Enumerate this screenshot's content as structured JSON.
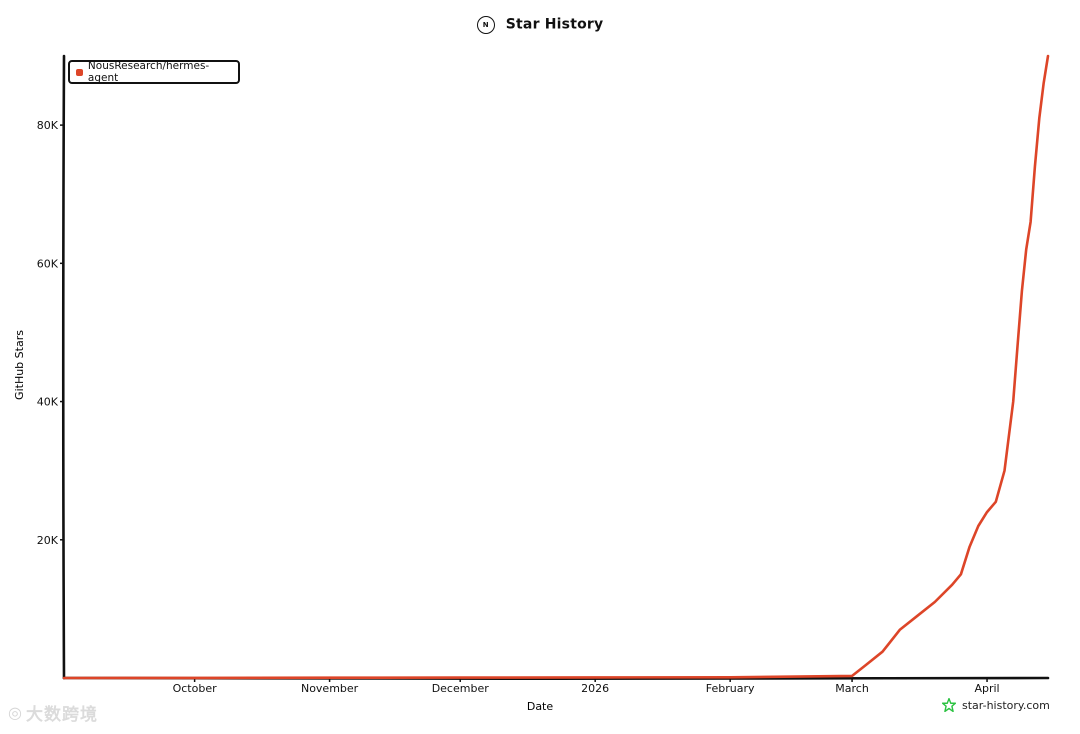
{
  "header": {
    "title": "Star History",
    "icon": "nous-logo-icon"
  },
  "legend": {
    "color": "#dd4528"
  },
  "watermark": {
    "label": "star-history.com",
    "icon": "star-icon",
    "icon_color": "#2bc241"
  },
  "overlay_watermark": {
    "label": "大数跨境",
    "icon": "logo-icon"
  },
  "chart_data": {
    "type": "line",
    "title": "Star History",
    "xlabel": "Date",
    "ylabel": "GitHub Stars",
    "x_tick_labels": [
      "October",
      "November",
      "December",
      "2026",
      "February",
      "March",
      "April"
    ],
    "x_tick_dates": [
      "2025-10-01",
      "2025-11-01",
      "2025-12-01",
      "2026-01-01",
      "2026-02-01",
      "2026-03-01",
      "2026-04-01"
    ],
    "y_tick_labels": [
      "20K",
      "40K",
      "60K",
      "80K"
    ],
    "y_ticks": [
      20000,
      40000,
      60000,
      80000
    ],
    "xlim": [
      "2025-09-01",
      "2026-04-15"
    ],
    "ylim": [
      0,
      90000
    ],
    "grid": false,
    "legend_position": "top-left",
    "series": [
      {
        "name": "NousResearch/hermes-agent",
        "color": "#dd4528",
        "points": [
          [
            "2025-09-01",
            0
          ],
          [
            "2025-10-01",
            20
          ],
          [
            "2025-11-01",
            40
          ],
          [
            "2025-12-01",
            60
          ],
          [
            "2026-01-01",
            80
          ],
          [
            "2026-02-01",
            100
          ],
          [
            "2026-03-01",
            300
          ],
          [
            "2026-03-04",
            1800
          ],
          [
            "2026-03-08",
            3800
          ],
          [
            "2026-03-12",
            7000
          ],
          [
            "2026-03-16",
            9000
          ],
          [
            "2026-03-20",
            11000
          ],
          [
            "2026-03-24",
            13500
          ],
          [
            "2026-03-26",
            15000
          ],
          [
            "2026-03-28",
            19000
          ],
          [
            "2026-03-30",
            22000
          ],
          [
            "2026-04-01",
            24000
          ],
          [
            "2026-04-03",
            25500
          ],
          [
            "2026-04-05",
            30000
          ],
          [
            "2026-04-07",
            40000
          ],
          [
            "2026-04-08",
            48000
          ],
          [
            "2026-04-09",
            56000
          ],
          [
            "2026-04-10",
            62000
          ],
          [
            "2026-04-11",
            66000
          ],
          [
            "2026-04-12",
            74000
          ],
          [
            "2026-04-13",
            81000
          ],
          [
            "2026-04-14",
            86000
          ],
          [
            "2026-04-15",
            90000
          ]
        ]
      }
    ]
  }
}
